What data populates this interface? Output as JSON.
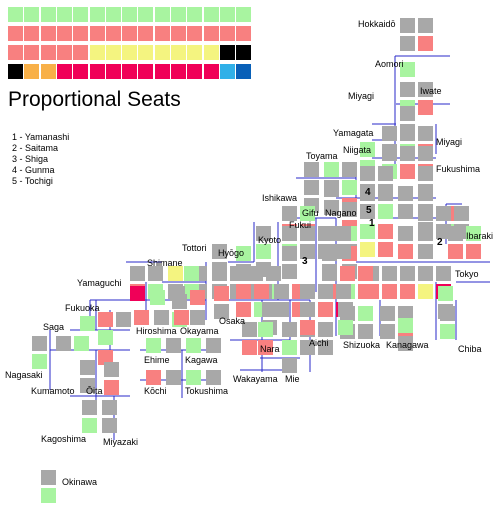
{
  "colors": {
    "green": "#a8f4a0",
    "gray": "#a8a8a8",
    "salmon": "#f88080",
    "yellow": "#f4f480",
    "black": "#000000",
    "orange": "#f8b048",
    "crimson": "#f00058",
    "skyblue": "#30b0e8",
    "blue": "#0860b8",
    "line": "#2828c8"
  },
  "header": {
    "title": "Proportional Seats"
  },
  "legend_list": [
    "1 - Yamanashi",
    "2 - Saitama",
    "3 - Shiga",
    "4 - Gunma",
    "5 - Tochigi"
  ],
  "prefectures": {
    "hokkaido": "Hokkaidō",
    "aomori": "Aomori",
    "iwate": "Iwate",
    "miyagi_west": "Miyagi",
    "miyagi_east": "Miyagi",
    "yamagata": "Yamagata",
    "niigata": "Niigata",
    "fukushima": "Fukushima",
    "toyama": "Toyama",
    "ishikawa": "Ishikawa",
    "gifu": "Gifu",
    "nagano": "Nagano",
    "fukui": "Fukui",
    "ibaraki": "Ibaraki",
    "tottori": "Tottori",
    "hyogo": "Hyōgo",
    "kyoto": "Kyoto",
    "shimane": "Shimane",
    "yamaguchi": "Yamaguchi",
    "tokyo": "Tokyo",
    "fukuoka": "Fukuoka",
    "osaka": "Osaka",
    "hiroshima": "Hiroshima",
    "okayama": "Okayama",
    "saga": "Saga",
    "ehime": "Ehime",
    "kagawa": "Kagawa",
    "nara": "Nara",
    "aichi": "Aichi",
    "shizuoka": "Shizuoka",
    "kanagawa": "Kanagawa",
    "nagasaki": "Nagasaki",
    "chiba": "Chiba",
    "kumamoto": "Kumamoto",
    "oita": "Ōita",
    "kochi": "Kōchi",
    "tokushima": "Tokushima",
    "wakayama": "Wakayama",
    "mie": "Mie",
    "kagoshima": "Kagoshima",
    "miyazaki": "Miyazaki",
    "okinawa": "Okinawa"
  },
  "map_numbers": {
    "n1": "1",
    "n2": "2",
    "n3": "3",
    "n4": "4",
    "n5": "5"
  },
  "summary_rows": [
    [
      "green",
      "green",
      "green",
      "green",
      "green",
      "green",
      "green",
      "green",
      "green",
      "green",
      "green",
      "green",
      "green",
      "green",
      "green"
    ],
    [
      "salmon",
      "salmon",
      "salmon",
      "salmon",
      "salmon",
      "salmon",
      "salmon",
      "salmon",
      "salmon",
      "salmon",
      "salmon",
      "salmon",
      "salmon",
      "salmon",
      "salmon"
    ],
    [
      "salmon",
      "salmon",
      "salmon",
      "salmon",
      "salmon",
      "yellow",
      "yellow",
      "yellow",
      "yellow",
      "yellow",
      "yellow",
      "yellow",
      "yellow",
      "black",
      "black"
    ],
    [
      "black",
      "orange",
      "orange",
      "crimson",
      "crimson",
      "crimson",
      "crimson",
      "crimson",
      "crimson",
      "crimson",
      "crimson",
      "crimson",
      "crimson",
      "skyblue",
      "blue"
    ]
  ],
  "seat_groups": [
    {
      "colors": [
        "gray",
        "salmon"
      ],
      "cols": 1
    },
    {
      "colors": [
        "gray",
        "gray"
      ],
      "cols": 1
    },
    {
      "colors": [
        "green"
      ],
      "cols": 1
    },
    {
      "colors": [
        "gray",
        "green"
      ],
      "cols": 1
    },
    {
      "colors": [
        "gray",
        "salmon"
      ],
      "cols": 1
    },
    {
      "colors": [
        "gray",
        "gray"
      ],
      "cols": 1
    },
    {
      "colors": [
        "gray",
        "green"
      ],
      "cols": 1
    },
    {
      "colors": [
        "gray",
        "salmon"
      ],
      "cols": 1
    },
    {
      "colors": [
        "gray",
        "gray"
      ],
      "cols": 1
    },
    {
      "colors": [
        "gray",
        "green"
      ],
      "cols": 1
    },
    {
      "colors": [
        "gray",
        "salmon"
      ],
      "cols": 1
    },
    {
      "colors": [
        "green",
        "green"
      ],
      "cols": 1
    },
    {
      "colors": [
        "gray",
        "salmon"
      ],
      "cols": 1
    },
    {
      "colors": [
        "gray",
        "gray"
      ],
      "cols": 1
    },
    {
      "colors": [
        "gray",
        "gray"
      ],
      "cols": 1
    },
    {
      "colors": [
        "gray",
        "gray"
      ],
      "cols": 1
    },
    {
      "colors": [
        "gray",
        "gray"
      ],
      "cols": 1
    },
    {
      "colors": [
        "green",
        "salmon"
      ],
      "cols": 1
    },
    {
      "colors": [
        "green",
        "gray"
      ],
      "cols": 1
    },
    {
      "colors": [
        "gray",
        "gray"
      ],
      "cols": 1
    },
    {
      "colors": [
        "gray",
        "gray"
      ],
      "cols": 1
    },
    {
      "colors": [
        "gray",
        "gray"
      ],
      "cols": 1
    },
    {
      "colors": [
        "gray",
        "gray"
      ],
      "cols": 1
    },
    {
      "colors": [
        "gray",
        "gray"
      ],
      "cols": 1
    },
    {
      "colors": [
        "gray",
        "gray"
      ],
      "cols": 1
    },
    {
      "colors": [
        "gray",
        "green"
      ],
      "cols": 1
    },
    {
      "colors": [
        "gray",
        "gray"
      ],
      "cols": 1
    },
    {
      "colors": [
        "salmon",
        "green"
      ],
      "cols": 1
    },
    {
      "colors": [
        "gray",
        "gray",
        "gray",
        "gray",
        "gray",
        "gray"
      ],
      "cols": 3
    },
    {
      "colors": [
        "gray",
        "salmon"
      ],
      "cols": 1
    },
    {
      "colors": [
        "green",
        "salmon",
        "yellow",
        "salmon"
      ],
      "cols": 2
    },
    {
      "colors": [
        "gray",
        "salmon"
      ],
      "cols": 1
    },
    {
      "colors": [
        "green",
        "gray"
      ],
      "cols": 1
    },
    {
      "colors": [
        "salmon",
        "gray"
      ],
      "cols": 1
    },
    {
      "colors": [
        "gray",
        "salmon"
      ],
      "cols": 1
    },
    {
      "colors": [
        "gray",
        "gray"
      ],
      "cols": 1
    },
    {
      "colors": [
        "gray",
        "gray"
      ],
      "cols": 1
    },
    {
      "colors": [
        "gray",
        "gray"
      ],
      "cols": 1
    },
    {
      "colors": [
        "gray",
        "gray",
        "gray",
        "gray",
        "gray",
        "salmon",
        "salmon",
        "salmon",
        "yellow",
        "crimson"
      ],
      "cols": 5
    },
    {
      "colors": [
        "green",
        "salmon"
      ],
      "cols": 1
    },
    {
      "colors": [
        "gray",
        "salmon",
        "salmon",
        "salmon",
        "green",
        "salmon"
      ],
      "cols": 3
    },
    {
      "colors": [
        "gray",
        "green",
        "salmon",
        "salmon"
      ],
      "cols": 2
    },
    {
      "colors": [
        "gray",
        "gray",
        "gray",
        "gray",
        "gray",
        "gray"
      ],
      "cols": 3
    },
    {
      "colors": [
        "gray",
        "green"
      ],
      "cols": 1
    },
    {
      "colors": [
        "gray",
        "gray"
      ],
      "cols": 1
    },
    {
      "colors": [
        "gray",
        "salmon"
      ],
      "cols": 1
    },
    {
      "colors": [
        "green",
        "gray"
      ],
      "cols": 1
    },
    {
      "colors": [
        "gray",
        "gray",
        "gray",
        "gray",
        "gray",
        "gray",
        "gray",
        "gray"
      ],
      "cols": 4
    },
    {
      "colors": [
        "gray",
        "salmon",
        "green",
        "salmon",
        "green",
        "gray"
      ],
      "cols": 3
    },
    {
      "colors": [
        "gray",
        "salmon",
        "gray",
        "salmon"
      ],
      "cols": 2
    },
    {
      "colors": [
        "gray",
        "gray",
        "gray",
        "gray",
        "salmon",
        "crimson"
      ],
      "cols": 3
    },
    {
      "colors": [
        "gray",
        "gray"
      ],
      "cols": 1
    },
    {
      "colors": [
        "gray",
        "green",
        "gray",
        "gray"
      ],
      "cols": 2
    },
    {
      "colors": [
        "green",
        "gray"
      ],
      "cols": 1
    },
    {
      "colors": [
        "gray",
        "gray",
        "gray",
        "salmon"
      ],
      "cols": 2
    },
    {
      "colors": [
        "green",
        "gray"
      ],
      "cols": 1
    },
    {
      "colors": [
        "gray",
        "green"
      ],
      "cols": 1
    },
    {
      "colors": [
        "green",
        "salmon"
      ],
      "cols": 1
    },
    {
      "colors": [
        "gray",
        "salmon"
      ],
      "cols": 1
    },
    {
      "colors": [
        "gray",
        "gray",
        "gray",
        "gray",
        "gray",
        "gray"
      ],
      "cols": 3
    },
    {
      "colors": [
        "green",
        "gray"
      ],
      "cols": 1
    },
    {
      "colors": [
        "gray",
        "salmon"
      ],
      "cols": 1
    },
    {
      "colors": [
        "gray",
        "green"
      ],
      "cols": 1
    },
    {
      "colors": [
        "salmon",
        "gray"
      ],
      "cols": 1
    },
    {
      "colors": [
        "gray",
        "gray"
      ],
      "cols": 1
    },
    {
      "colors": [
        "gray",
        "salmon"
      ],
      "cols": 1
    },
    {
      "colors": [
        "green",
        "gray"
      ],
      "cols": 1
    },
    {
      "colors": [
        "gray",
        "gray"
      ],
      "cols": 1
    },
    {
      "colors": [
        "green",
        "green"
      ],
      "cols": 1
    },
    {
      "colors": [
        "gray",
        "green"
      ],
      "cols": 1
    },
    {
      "colors": [
        "yellow",
        "gray"
      ],
      "cols": 1
    },
    {
      "colors": [
        "gray",
        "salmon"
      ],
      "cols": 1
    },
    {
      "colors": [
        "crimson"
      ],
      "cols": 1
    },
    {
      "colors": [
        "green"
      ],
      "cols": 1
    },
    {
      "colors": [
        "gray",
        "green"
      ],
      "cols": 1
    }
  ]
}
